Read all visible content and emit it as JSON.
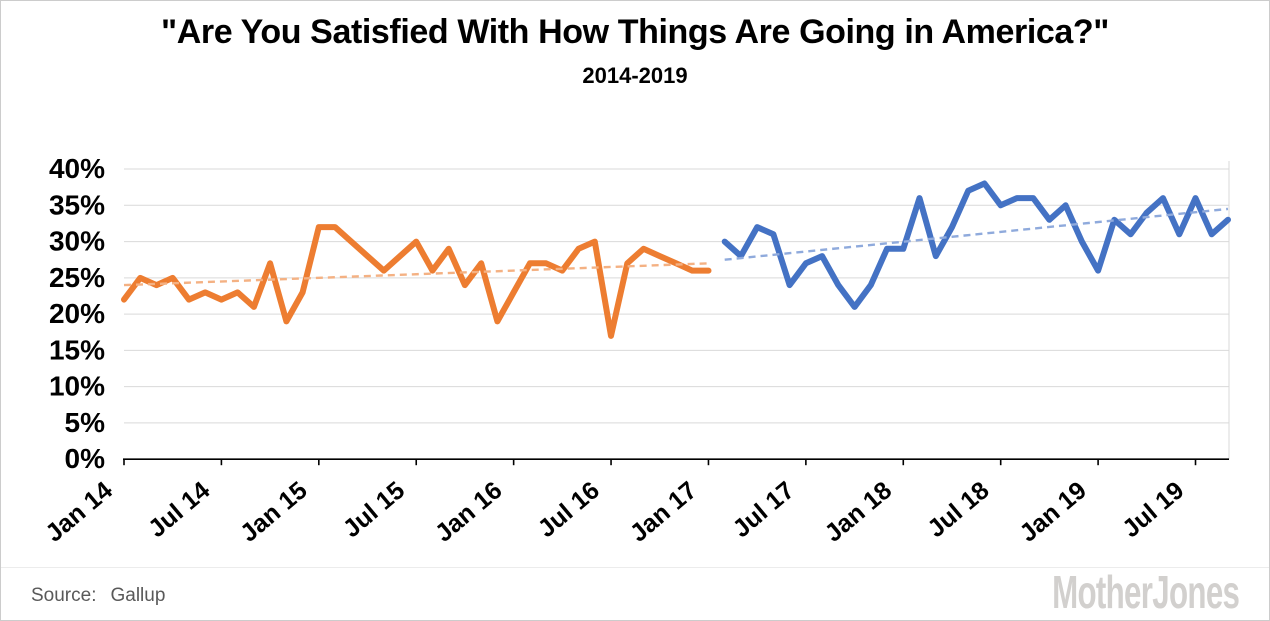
{
  "chart_data": {
    "type": "line",
    "title": "\"Are You Satisfied With How Things Are Going in America?\"",
    "subtitle": "2014-2019",
    "x_axis": {
      "unit": "month",
      "tick_labels": [
        "Jan 14",
        "Jul 14",
        "Jan 15",
        "Jul 15",
        "Jan 16",
        "Jul 16",
        "Jan 17",
        "Jul 17",
        "Jan 18",
        "Jul 18",
        "Jan 19",
        "Jul 19"
      ],
      "tick_month_indices": [
        0,
        6,
        12,
        18,
        24,
        30,
        36,
        42,
        48,
        54,
        60,
        66
      ],
      "total_months": 69
    },
    "y_axis": {
      "tick_labels": [
        "0%",
        "5%",
        "10%",
        "15%",
        "20%",
        "25%",
        "30%",
        "35%",
        "40%"
      ],
      "tick_values": [
        0,
        5,
        10,
        15,
        20,
        25,
        30,
        35,
        40
      ],
      "range": [
        0,
        40
      ],
      "gridlines": true
    },
    "series": [
      {
        "name": "satisfied-orange-2014-jan2017",
        "color": "#ED7D31",
        "start_month_index": 0,
        "values": [
          22,
          25,
          24,
          25,
          22,
          23,
          22,
          23,
          21,
          27,
          19,
          23,
          32,
          32,
          30,
          28,
          26,
          28,
          30,
          26,
          29,
          24,
          27,
          19,
          23,
          27,
          27,
          26,
          29,
          30,
          17,
          27,
          29,
          28,
          27,
          26,
          26
        ]
      },
      {
        "name": "satisfied-blue-feb2017-2019",
        "color": "#4472C4",
        "start_month_index": 37,
        "values": [
          30,
          28,
          32,
          31,
          24,
          27,
          28,
          24,
          21,
          24,
          29,
          29,
          36,
          28,
          32,
          37,
          38,
          35,
          36,
          36,
          33,
          35,
          30,
          26,
          33,
          31,
          34,
          36,
          31,
          36,
          31,
          33
        ]
      }
    ],
    "trendlines": [
      {
        "for": "satisfied-orange-2014-jan2017",
        "color": "#F4B183",
        "start_month_index": 0,
        "end_month_index": 36,
        "start_value": 24.0,
        "end_value": 27.0
      },
      {
        "for": "satisfied-blue-feb2017-2019",
        "color": "#8FAADC",
        "start_month_index": 37,
        "end_month_index": 68,
        "start_value": 27.5,
        "end_value": 34.5
      }
    ],
    "colors": {
      "gridline": "#D9D9D9",
      "axis": "#000000",
      "plot_right_border": "#D9D9D9",
      "tick_label": "#000000"
    },
    "legend": "none"
  },
  "footer": {
    "source_label": "Source:",
    "source_value": "Gallup",
    "logo_text": "MotherJones"
  }
}
